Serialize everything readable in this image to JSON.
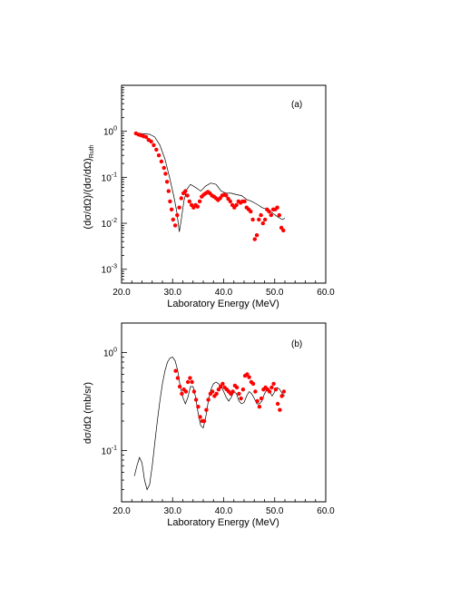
{
  "chart_data": [
    {
      "type": "line",
      "panel_label": "(a)",
      "xlabel": "Laboratory Energy (MeV)",
      "ylabel": "(dσ/dΩ)/(dσ/dΩ)Ruth",
      "ylabel_main": "(dσ/dΩ)/(dσ/dΩ)",
      "ylabel_sub": "Ruth",
      "xlim": [
        20.0,
        60.0
      ],
      "ylim": [
        0.0005,
        10
      ],
      "yscale": "log",
      "x_ticks": [
        "20.0",
        "30.0",
        "40.0",
        "50.0",
        "60.0"
      ],
      "y_ticks": [
        "10-3",
        "10-2",
        "10-1",
        "100"
      ],
      "series": [
        {
          "kind": "line",
          "color": "#000000",
          "x": [
            22.5,
            23.5,
            24.5,
            25.5,
            26.5,
            27.5,
            28.5,
            29.5,
            30.2,
            30.8,
            31.3,
            31.7,
            32.2,
            32.8,
            33.5,
            34.5,
            35.5,
            36.5,
            37.5,
            38.5,
            39.5,
            40.5,
            41.5,
            42.5,
            43.5,
            44.5,
            45.5,
            46.5,
            47.5,
            48.5,
            49.5,
            50.5,
            51.5,
            52.0
          ],
          "y": [
            0.9,
            0.9,
            0.88,
            0.86,
            0.75,
            0.5,
            0.25,
            0.09,
            0.04,
            0.018,
            0.0065,
            0.012,
            0.03,
            0.055,
            0.07,
            0.06,
            0.05,
            0.065,
            0.075,
            0.07,
            0.05,
            0.045,
            0.045,
            0.042,
            0.04,
            0.033,
            0.03,
            0.026,
            0.022,
            0.02,
            0.017,
            0.014,
            0.012,
            0.013
          ]
        },
        {
          "kind": "scatter",
          "color": "#ff0000",
          "x": [
            22.8,
            23.3,
            23.8,
            24.3,
            24.8,
            25.3,
            25.8,
            26.3,
            26.8,
            27.3,
            27.8,
            28.3,
            28.6,
            28.9,
            29.2,
            29.5,
            29.8,
            30.1,
            30.5,
            30.9,
            31.3,
            31.7,
            32.1,
            32.5,
            32.9,
            33.3,
            33.7,
            34.1,
            34.5,
            34.9,
            35.3,
            35.7,
            36.1,
            36.5,
            36.9,
            37.3,
            37.7,
            38.1,
            38.5,
            38.9,
            39.3,
            39.7,
            40.1,
            40.5,
            40.9,
            41.3,
            41.7,
            42.1,
            42.5,
            42.9,
            43.3,
            43.7,
            44.1,
            44.5,
            44.9,
            45.3,
            45.7,
            46.1,
            46.5,
            46.9,
            47.3,
            47.7,
            48.1,
            48.5,
            48.9,
            49.3,
            49.7,
            50.1,
            50.5,
            50.9,
            51.3,
            51.7
          ],
          "y": [
            0.9,
            0.85,
            0.82,
            0.78,
            0.75,
            0.65,
            0.6,
            0.5,
            0.4,
            0.3,
            0.22,
            0.16,
            0.12,
            0.08,
            0.05,
            0.03,
            0.02,
            0.012,
            0.009,
            0.015,
            0.022,
            0.035,
            0.045,
            0.05,
            0.04,
            0.03,
            0.025,
            0.022,
            0.025,
            0.023,
            0.03,
            0.038,
            0.042,
            0.045,
            0.048,
            0.045,
            0.04,
            0.038,
            0.035,
            0.032,
            0.035,
            0.04,
            0.042,
            0.04,
            0.034,
            0.03,
            0.025,
            0.022,
            0.025,
            0.03,
            0.028,
            0.03,
            0.03,
            0.022,
            0.02,
            0.018,
            0.012,
            0.0045,
            0.0055,
            0.012,
            0.015,
            0.01,
            0.012,
            0.02,
            0.018,
            0.015,
            0.02,
            0.02,
            0.022,
            0.015,
            0.008,
            0.007
          ]
        }
      ]
    },
    {
      "type": "line",
      "panel_label": "(b)",
      "xlabel": "Laboratory Energy (MeV)",
      "ylabel": "dσ/dΩ (mb/sr)",
      "xlim": [
        20.0,
        60.0
      ],
      "ylim": [
        0.03,
        2.0
      ],
      "yscale": "log",
      "x_ticks": [
        "20.0",
        "30.0",
        "40.0",
        "50.0",
        "60.0"
      ],
      "y_ticks": [
        "10-1",
        "100"
      ],
      "series": [
        {
          "kind": "line",
          "color": "#000000",
          "x": [
            22.5,
            23.0,
            23.5,
            24.0,
            24.5,
            25.0,
            25.5,
            26.0,
            26.5,
            27.0,
            27.5,
            28.0,
            28.5,
            29.0,
            29.5,
            30.0,
            30.5,
            31.0,
            31.5,
            32.0,
            32.5,
            33.0,
            33.5,
            34.0,
            34.5,
            35.0,
            35.5,
            36.0,
            36.5,
            37.0,
            37.5,
            38.0,
            38.5,
            39.0,
            39.5,
            40.0,
            40.5,
            41.0,
            41.5,
            42.0,
            42.5,
            43.0,
            43.5,
            44.0,
            44.5,
            45.0,
            45.5,
            46.0,
            46.5,
            47.0,
            47.5,
            48.0,
            48.5,
            49.0,
            49.5,
            50.0,
            50.5,
            51.0,
            51.5,
            52.0
          ],
          "y": [
            0.055,
            0.07,
            0.085,
            0.075,
            0.05,
            0.04,
            0.045,
            0.07,
            0.12,
            0.2,
            0.32,
            0.48,
            0.65,
            0.8,
            0.88,
            0.9,
            0.82,
            0.65,
            0.45,
            0.35,
            0.3,
            0.35,
            0.45,
            0.45,
            0.35,
            0.24,
            0.18,
            0.17,
            0.22,
            0.32,
            0.42,
            0.48,
            0.5,
            0.48,
            0.45,
            0.4,
            0.35,
            0.32,
            0.35,
            0.4,
            0.38,
            0.32,
            0.3,
            0.31,
            0.36,
            0.4,
            0.38,
            0.34,
            0.3,
            0.3,
            0.32,
            0.38,
            0.42,
            0.4,
            0.36,
            0.4,
            0.44,
            0.42,
            0.38,
            0.36
          ]
        },
        {
          "kind": "scatter",
          "color": "#ff0000",
          "x": [
            30.6,
            31.0,
            31.4,
            31.8,
            32.2,
            32.6,
            33.0,
            33.4,
            33.8,
            34.2,
            34.6,
            35.0,
            35.4,
            35.8,
            36.2,
            36.6,
            37.0,
            37.4,
            37.8,
            38.2,
            38.6,
            39.0,
            39.4,
            39.8,
            40.2,
            40.6,
            41.0,
            41.4,
            41.8,
            42.2,
            42.6,
            43.0,
            43.4,
            43.8,
            44.2,
            44.6,
            45.0,
            45.4,
            45.8,
            46.2,
            46.6,
            47.0,
            47.4,
            47.8,
            48.2,
            48.6,
            49.0,
            49.4,
            49.8,
            50.2,
            50.6,
            51.0,
            51.4,
            51.8
          ],
          "y": [
            0.65,
            0.55,
            0.45,
            0.38,
            0.42,
            0.4,
            0.5,
            0.55,
            0.5,
            0.4,
            0.33,
            0.28,
            0.22,
            0.2,
            0.2,
            0.26,
            0.33,
            0.38,
            0.4,
            0.36,
            0.38,
            0.42,
            0.45,
            0.48,
            0.44,
            0.42,
            0.4,
            0.38,
            0.4,
            0.46,
            0.44,
            0.38,
            0.34,
            0.42,
            0.58,
            0.6,
            0.56,
            0.5,
            0.48,
            0.4,
            0.32,
            0.28,
            0.34,
            0.42,
            0.44,
            0.42,
            0.4,
            0.44,
            0.48,
            0.42,
            0.3,
            0.26,
            0.36,
            0.4
          ]
        }
      ]
    }
  ]
}
